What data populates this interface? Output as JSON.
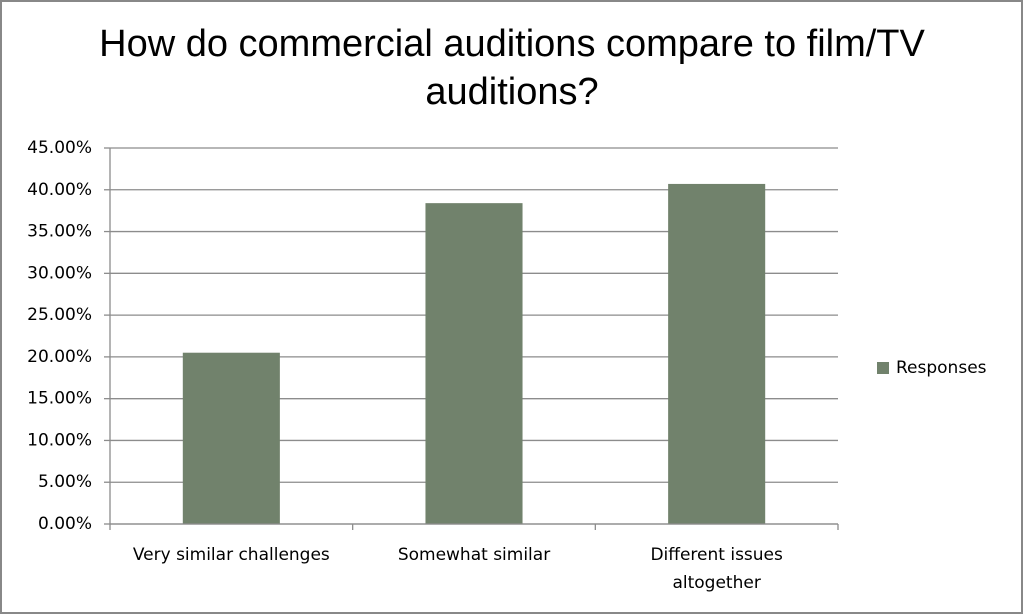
{
  "chart_data": {
    "type": "bar",
    "title": "How do commercial auditions compare to film/TV auditions?",
    "categories": [
      "Very similar challenges",
      "Somewhat similar",
      "Different issues altogether"
    ],
    "series": [
      {
        "name": "Responses",
        "color": "#71826c",
        "values": [
          20.5,
          38.4,
          40.7
        ]
      }
    ],
    "ylim": [
      0,
      45
    ],
    "yticks": [
      {
        "value": 0,
        "label": "0.00%"
      },
      {
        "value": 5,
        "label": "5.00%"
      },
      {
        "value": 10,
        "label": "10.00%"
      },
      {
        "value": 15,
        "label": "15.00%"
      },
      {
        "value": 20,
        "label": "20.00%"
      },
      {
        "value": 25,
        "label": "25.00%"
      },
      {
        "value": 30,
        "label": "30.00%"
      },
      {
        "value": 35,
        "label": "35.00%"
      },
      {
        "value": 40,
        "label": "40.00%"
      },
      {
        "value": 45,
        "label": "45.00%"
      }
    ],
    "grid": true,
    "legend": "right"
  }
}
